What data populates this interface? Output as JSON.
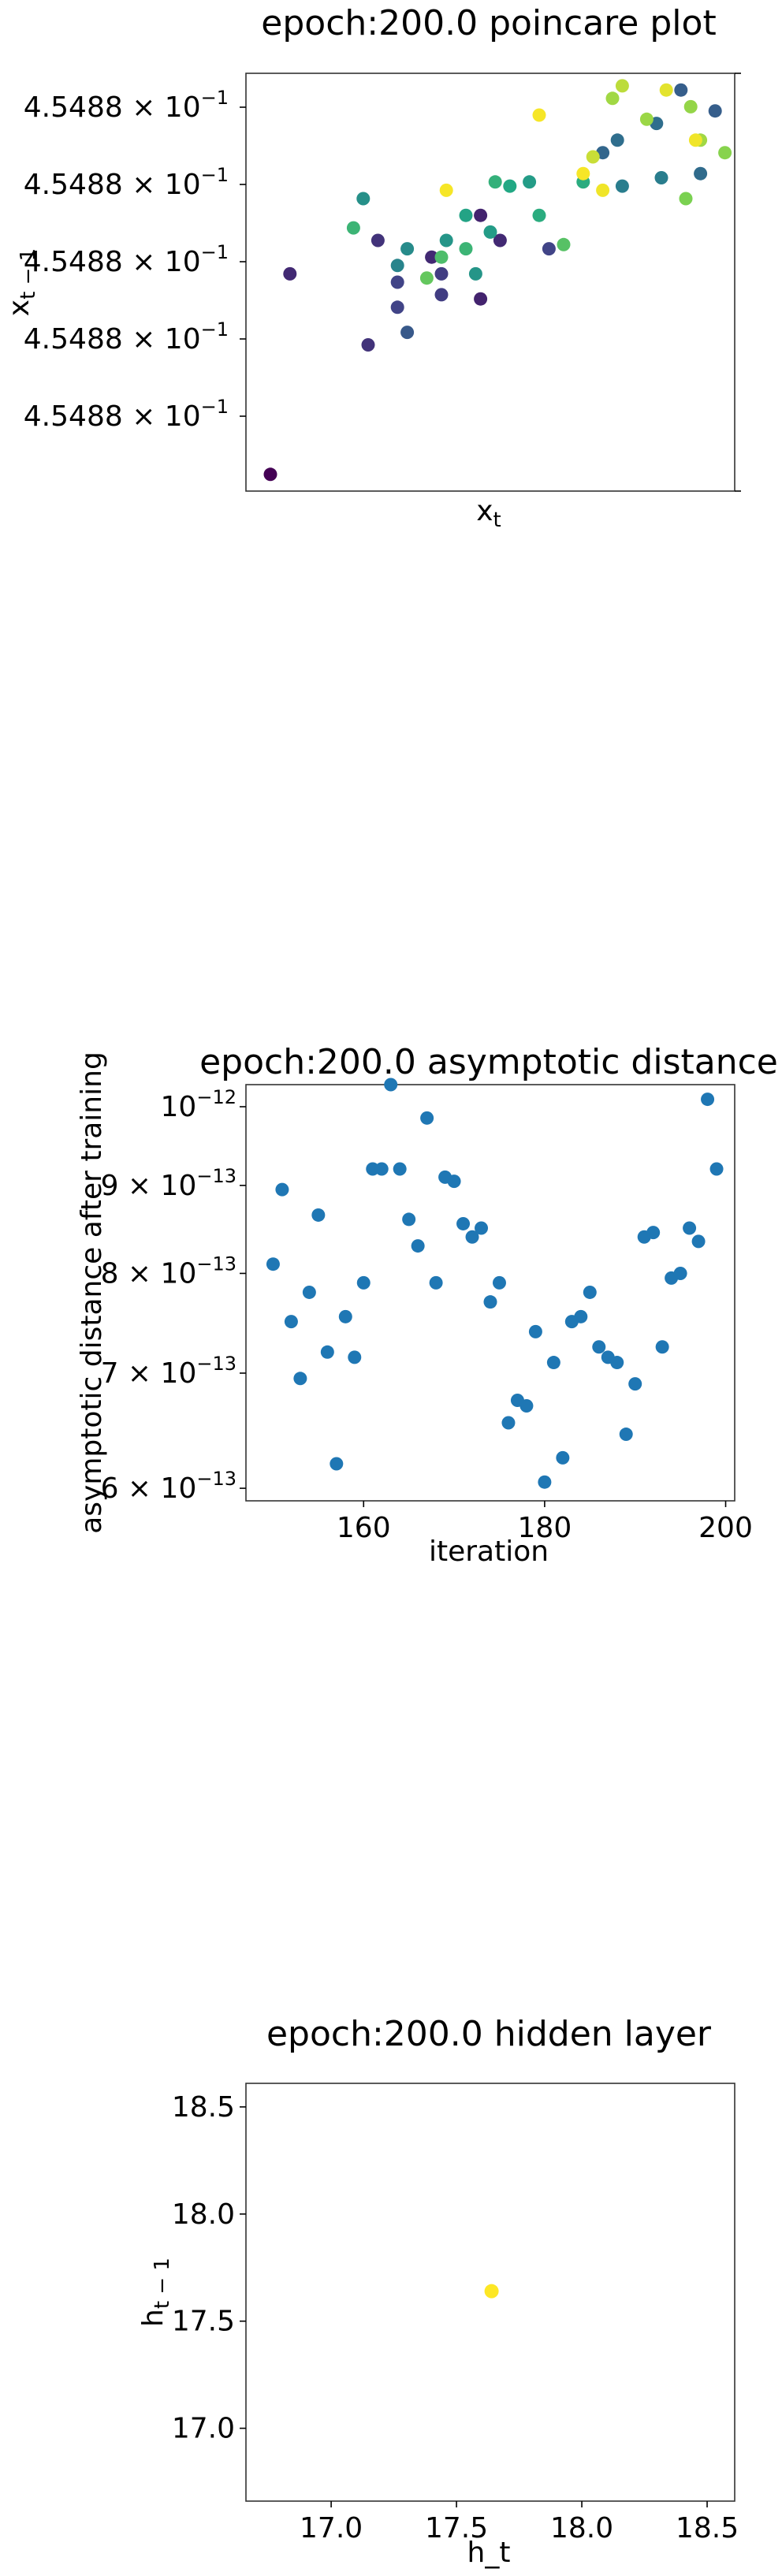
{
  "chart_data": [
    {
      "type": "scatter",
      "title": "epoch:200.0 poincare plot",
      "xlabel": "x_t",
      "ylabel": "x_{t-1}",
      "x_ticks_visible": false,
      "y_tick_labels": [
        "4.5488 × 10^-1",
        "4.5488 × 10^-1",
        "4.5488 × 10^-1",
        "4.5488 × 10^-1",
        "4.5488 × 10^-1"
      ],
      "y_tick_base": "4.5488 ×",
      "y_tick_exp_base": "10",
      "y_tick_exp": "−1",
      "colormap": "viridis",
      "points_note": "relative positions within frame (0-1), color value 0-1 (viridis)",
      "points": [
        [
          0.05,
          0.04,
          0.0
        ],
        [
          0.09,
          0.52,
          0.12
        ],
        [
          0.25,
          0.35,
          0.15
        ],
        [
          0.27,
          0.6,
          0.15
        ],
        [
          0.31,
          0.5,
          0.2
        ],
        [
          0.31,
          0.44,
          0.2
        ],
        [
          0.38,
          0.56,
          0.12
        ],
        [
          0.4,
          0.47,
          0.18
        ],
        [
          0.4,
          0.52,
          0.18
        ],
        [
          0.48,
          0.46,
          0.1
        ],
        [
          0.48,
          0.66,
          0.1
        ],
        [
          0.52,
          0.6,
          0.12
        ],
        [
          0.62,
          0.58,
          0.2
        ],
        [
          0.33,
          0.38,
          0.28
        ],
        [
          0.89,
          0.96,
          0.3
        ],
        [
          0.96,
          0.91,
          0.3
        ],
        [
          0.93,
          0.76,
          0.35
        ],
        [
          0.73,
          0.81,
          0.33
        ],
        [
          0.76,
          0.84,
          0.36
        ],
        [
          0.84,
          0.88,
          0.36
        ],
        [
          0.77,
          0.73,
          0.42
        ],
        [
          0.85,
          0.75,
          0.42
        ],
        [
          0.31,
          0.54,
          0.45
        ],
        [
          0.33,
          0.58,
          0.48
        ],
        [
          0.24,
          0.7,
          0.5
        ],
        [
          0.47,
          0.52,
          0.52
        ],
        [
          0.41,
          0.6,
          0.52
        ],
        [
          0.5,
          0.62,
          0.55
        ],
        [
          0.45,
          0.66,
          0.58
        ],
        [
          0.54,
          0.73,
          0.6
        ],
        [
          0.58,
          0.74,
          0.55
        ],
        [
          0.69,
          0.74,
          0.62
        ],
        [
          0.6,
          0.66,
          0.62
        ],
        [
          0.51,
          0.74,
          0.64
        ],
        [
          0.22,
          0.63,
          0.66
        ],
        [
          0.45,
          0.58,
          0.66
        ],
        [
          0.4,
          0.56,
          0.7
        ],
        [
          0.65,
          0.59,
          0.72
        ],
        [
          0.37,
          0.51,
          0.75
        ],
        [
          0.9,
          0.7,
          0.8
        ],
        [
          0.98,
          0.81,
          0.82
        ],
        [
          0.91,
          0.92,
          0.84
        ],
        [
          0.82,
          0.89,
          0.85
        ],
        [
          0.75,
          0.94,
          0.86
        ],
        [
          0.93,
          0.84,
          0.86
        ],
        [
          0.71,
          0.8,
          0.92
        ],
        [
          0.77,
          0.97,
          0.9
        ],
        [
          0.86,
          0.96,
          0.96
        ],
        [
          0.92,
          0.84,
          0.98
        ],
        [
          0.69,
          0.76,
          0.99
        ],
        [
          0.73,
          0.72,
          0.98
        ],
        [
          0.6,
          0.9,
          0.99
        ],
        [
          0.41,
          0.72,
          0.99
        ]
      ]
    },
    {
      "type": "scatter",
      "title": "epoch:200.0 asymptotic distance",
      "xlabel": "iteration",
      "ylabel": "asymptotic distance after training",
      "x_range": [
        147,
        201
      ],
      "x_ticks": [
        "160",
        "180",
        "200"
      ],
      "y_scale": "log",
      "y_range": [
        5.9e-13,
        1.03e-12
      ],
      "y_ticks": [
        {
          "value": 6e-13,
          "mant": "6 × 10",
          "exp": "−13"
        },
        {
          "value": 7e-13,
          "mant": "7 × 10",
          "exp": "−13"
        },
        {
          "value": 8e-13,
          "mant": "8 × 10",
          "exp": "−13"
        },
        {
          "value": 9e-13,
          "mant": "9 × 10",
          "exp": "−13"
        },
        {
          "value": 1e-12,
          "mant": "10",
          "exp": "−12"
        }
      ],
      "color": "#1f77b4",
      "x": [
        150,
        151,
        152,
        153,
        154,
        155,
        156,
        157,
        158,
        159,
        160,
        161,
        162,
        163,
        164,
        165,
        166,
        167,
        168,
        169,
        170,
        171,
        172,
        173,
        174,
        175,
        176,
        177,
        178,
        179,
        180,
        181,
        182,
        183,
        184,
        185,
        186,
        187,
        188,
        189,
        190,
        191,
        192,
        193,
        194,
        195,
        196,
        197,
        198,
        199
      ],
      "y": [
        8.1e-13,
        8.95e-13,
        7.5e-13,
        6.95e-13,
        7.8e-13,
        8.65e-13,
        7.2e-13,
        6.2e-13,
        7.55e-13,
        7.15e-13,
        7.9e-13,
        9.2e-13,
        9.2e-13,
        1.03e-12,
        9.2e-13,
        8.6e-13,
        8.3e-13,
        9.85e-13,
        7.9e-13,
        9.1e-13,
        9.05e-13,
        8.55e-13,
        8.4e-13,
        8.5e-13,
        7.7e-13,
        7.9e-13,
        6.55e-13,
        6.75e-13,
        6.7e-13,
        7.4e-13,
        6.05e-13,
        7.1e-13,
        6.25e-13,
        7.5e-13,
        7.55e-13,
        7.8e-13,
        7.25e-13,
        7.15e-13,
        7.1e-13,
        6.45e-13,
        6.9e-13,
        8.4e-13,
        8.45e-13,
        7.25e-13,
        7.95e-13,
        8e-13,
        8.5e-13,
        8.35e-13,
        1.01e-12,
        9.2e-13
      ]
    },
    {
      "type": "scatter",
      "title": "epoch:200.0 hidden layer",
      "xlabel": "h_t",
      "ylabel": "h_{t-1}",
      "x_range": [
        16.66,
        18.61
      ],
      "y_range": [
        16.66,
        18.61
      ],
      "x_ticks": [
        "17.0",
        "17.5",
        "18.0",
        "18.5"
      ],
      "y_ticks": [
        "17.0",
        "17.5",
        "18.0",
        "18.5"
      ],
      "color": "#fde725",
      "x": [
        17.64
      ],
      "y": [
        17.64
      ]
    }
  ]
}
